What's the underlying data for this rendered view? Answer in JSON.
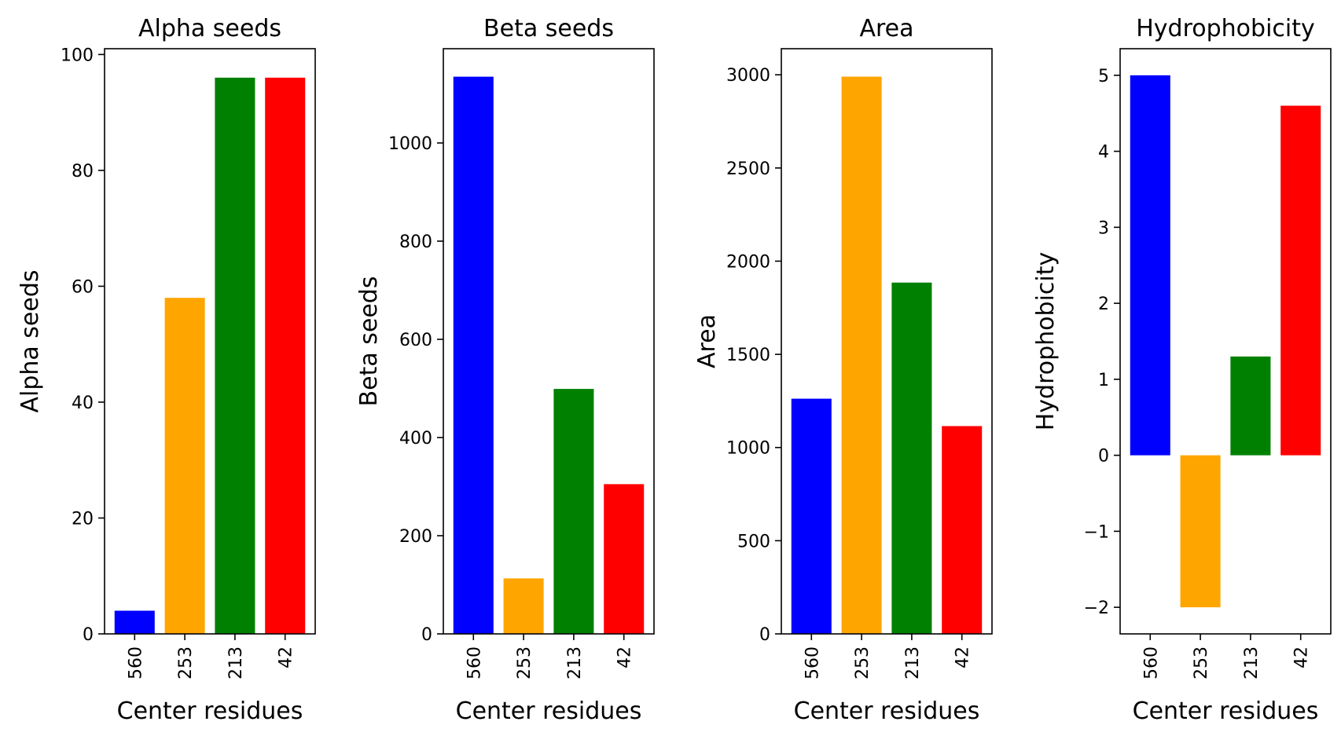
{
  "chart_data": [
    {
      "type": "bar",
      "title": "Alpha seeds",
      "xlabel": "Center residues",
      "ylabel": "Alpha seeds",
      "categories": [
        "560",
        "253",
        "213",
        "42"
      ],
      "values": [
        4,
        58,
        96,
        96
      ],
      "colors": [
        "#0000ff",
        "#ffa500",
        "#008000",
        "#ff0000"
      ],
      "ylim": [
        0,
        101
      ],
      "yticks": [
        0,
        20,
        40,
        60,
        80,
        100
      ],
      "grid": false
    },
    {
      "type": "bar",
      "title": "Beta seeds",
      "xlabel": "Center residues",
      "ylabel": "Beta seeds",
      "categories": [
        "560",
        "253",
        "213",
        "42"
      ],
      "values": [
        1135,
        113,
        499,
        305
      ],
      "colors": [
        "#0000ff",
        "#ffa500",
        "#008000",
        "#ff0000"
      ],
      "ylim": [
        0,
        1192
      ],
      "yticks": [
        0,
        200,
        400,
        600,
        800,
        1000
      ],
      "grid": false
    },
    {
      "type": "bar",
      "title": "Area",
      "xlabel": "Center residues",
      "ylabel": "Area",
      "categories": [
        "560",
        "253",
        "213",
        "42"
      ],
      "values": [
        1262,
        2990,
        1885,
        1115
      ],
      "colors": [
        "#0000ff",
        "#ffa500",
        "#008000",
        "#ff0000"
      ],
      "ylim": [
        0,
        3140
      ],
      "yticks": [
        0,
        500,
        1000,
        1500,
        2000,
        2500,
        3000
      ],
      "grid": false
    },
    {
      "type": "bar",
      "title": "Hydrophobicity",
      "xlabel": "Center residues",
      "ylabel": "Hydrophobicity",
      "categories": [
        "560",
        "253",
        "213",
        "42"
      ],
      "values": [
        5.0,
        -2.0,
        1.3,
        4.6
      ],
      "colors": [
        "#0000ff",
        "#ffa500",
        "#008000",
        "#ff0000"
      ],
      "ylim": [
        -2.35,
        5.35
      ],
      "yticks": [
        -2,
        -1,
        0,
        1,
        2,
        3,
        4,
        5
      ],
      "grid": false
    }
  ]
}
